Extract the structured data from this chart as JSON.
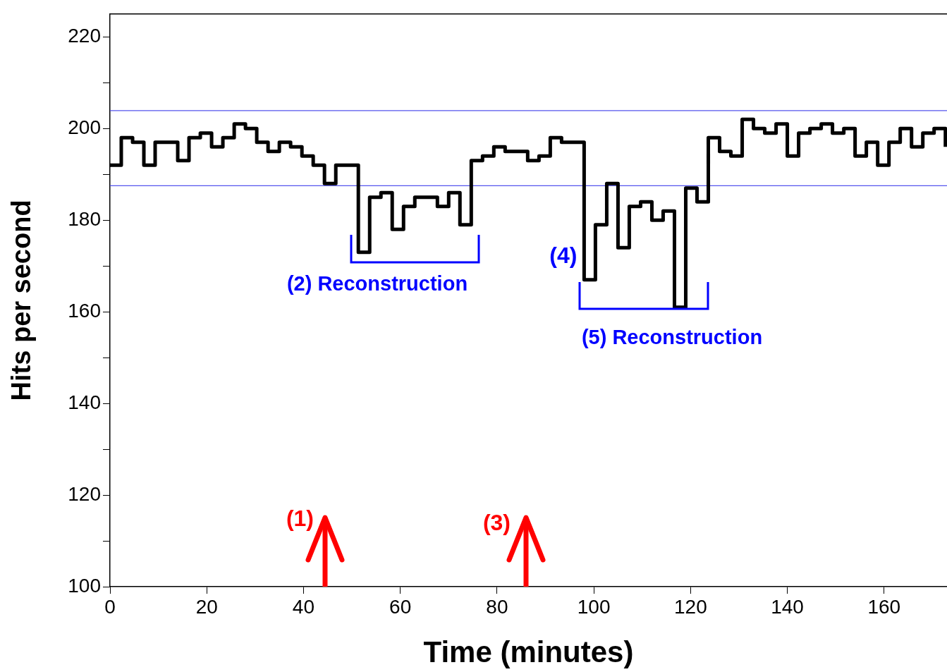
{
  "chart_data": {
    "type": "step",
    "xlabel": "Time (minutes)",
    "ylabel": "Hits per second",
    "x": [
      0,
      2.33,
      4.67,
      7,
      9.33,
      11.67,
      14,
      16.33,
      18.67,
      21,
      23.33,
      25.67,
      28,
      30.33,
      32.67,
      35,
      37.33,
      39.67,
      42,
      44.33,
      46.67,
      49,
      51.33,
      53.67,
      56,
      58.33,
      60.67,
      63,
      65.33,
      67.67,
      70,
      72.33,
      74.67,
      77,
      79.33,
      81.67,
      84,
      86.33,
      88.67,
      91,
      93.33,
      95.67,
      98,
      100.33,
      102.67,
      105,
      107.33,
      109.67,
      112,
      114.33,
      116.67,
      119,
      121.33,
      123.67,
      126,
      128.33,
      130.67,
      133,
      135.33,
      137.67,
      140,
      142.33,
      144.67,
      147,
      149.33,
      151.67,
      154,
      156.33,
      158.67,
      161,
      163.33,
      165.67,
      168,
      170.33,
      172.67
    ],
    "series": [
      {
        "color": "#000000",
        "values": [
          192,
          198,
          197,
          192,
          197,
          197,
          193,
          198,
          199,
          196,
          198,
          201,
          200,
          197,
          195,
          197,
          196,
          194,
          192,
          188,
          192,
          192,
          173,
          185,
          186,
          178,
          183,
          185,
          185,
          183,
          186,
          179,
          193,
          194,
          196,
          195,
          195,
          193,
          194,
          198,
          197,
          197,
          167,
          179,
          188,
          174,
          183,
          184,
          180,
          182,
          161,
          187,
          184,
          198,
          195,
          194,
          202,
          200,
          199,
          201,
          194,
          199,
          200,
          201,
          199,
          200,
          194,
          197,
          192,
          197,
          200,
          196,
          199,
          200,
          196
        ]
      }
    ],
    "xlim": [
      0,
      173
    ],
    "xticks": [
      0,
      20,
      40,
      60,
      80,
      100,
      120,
      140,
      160
    ],
    "ylim": [
      100,
      225
    ],
    "yticks": [
      100,
      {
        "value": 110,
        "label": null
      },
      120,
      {
        "value": 130,
        "label": null
      },
      140,
      {
        "value": 150,
        "label": null
      },
      160,
      {
        "value": 170,
        "label": null
      },
      180,
      {
        "value": 190,
        "label": null
      },
      200,
      {
        "value": 210,
        "label": null
      },
      220
    ],
    "ref_lines": [
      {
        "axis": "y",
        "value": 203.9,
        "color": "#5555ee"
      },
      {
        "axis": "y",
        "value": 187.5,
        "color": "#5555ee"
      }
    ],
    "annotations": [
      "(1)",
      "(2) Reconstruction",
      "(3)",
      {
        "text": "(4)",
        "x": 98,
        "y": 167
      },
      "(5) Reconstruction"
    ],
    "grid": false,
    "legend": false,
    "line_style": "solid",
    "marker": "none"
  }
}
